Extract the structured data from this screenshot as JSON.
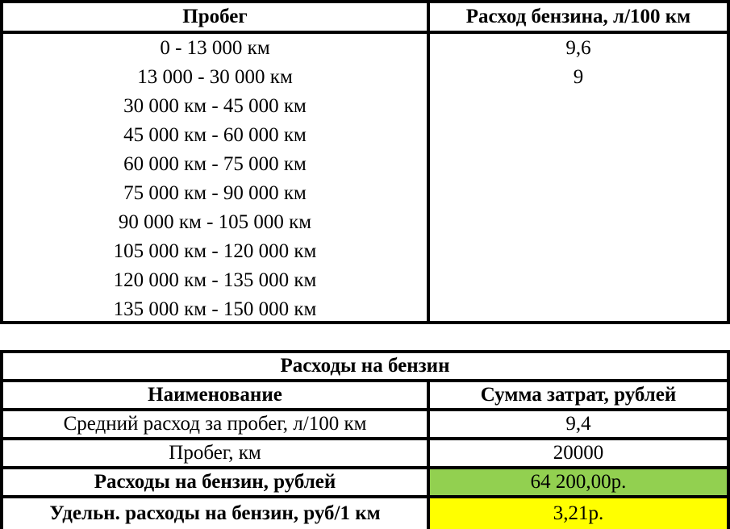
{
  "mileage_table": {
    "headers": [
      "Пробег",
      "Расход бензина, л/100 км"
    ],
    "rows": [
      [
        "0 - 13 000 км",
        "9,6"
      ],
      [
        "13 000 - 30 000 км",
        "9"
      ],
      [
        "30 000 км - 45 000 км",
        ""
      ],
      [
        "45 000 км - 60 000 км",
        ""
      ],
      [
        "60 000 км - 75 000 км",
        ""
      ],
      [
        "75 000 км - 90 000 км",
        ""
      ],
      [
        "90 000 км - 105 000 км",
        ""
      ],
      [
        "105 000 км - 120 000 км",
        ""
      ],
      [
        "120 000 км - 135 000 км",
        ""
      ],
      [
        "135 000 км - 150 000 км",
        ""
      ]
    ]
  },
  "expenses_table": {
    "title": "Расходы на бензин",
    "headers": [
      "Наименование",
      "Сумма затрат, рублей"
    ],
    "rows": [
      [
        "Средний расход за пробег, л/100 км",
        "9,4"
      ],
      [
        "Пробег, км",
        "20000"
      ],
      [
        "Расходы на бензин, рублей",
        "64 200,00р."
      ],
      [
        "Удельн. расходы на бензин, руб/1 км",
        "3,21р."
      ]
    ],
    "highlight_colors": {
      "total": "#92d050",
      "per_km": "#ffff00"
    }
  }
}
